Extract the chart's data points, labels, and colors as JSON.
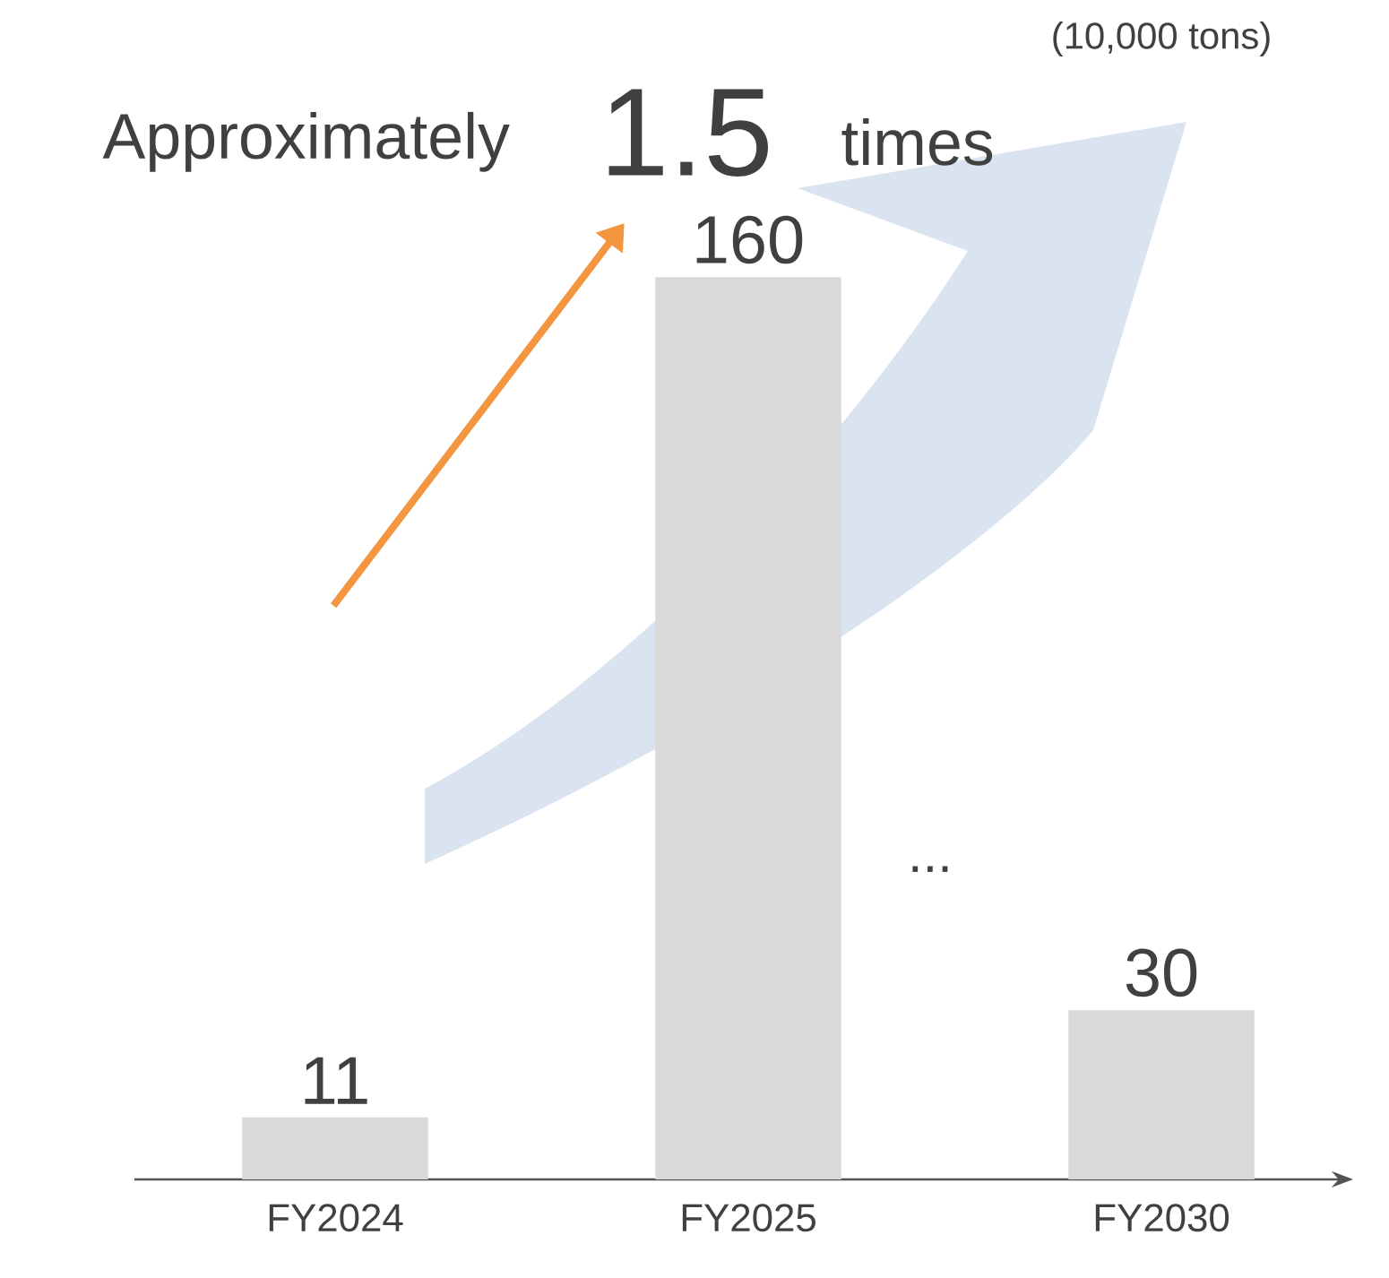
{
  "chart_data": {
    "type": "bar",
    "data_labels": true,
    "categories": [
      "FY2024",
      "FY2025",
      "FY2030"
    ],
    "values": [
      11,
      160,
      30
    ],
    "color": "#d9d9d9",
    "annotations": [
      "Approximately",
      "1.5",
      "times",
      "...",
      "(10,000 tons)"
    ]
  }
}
